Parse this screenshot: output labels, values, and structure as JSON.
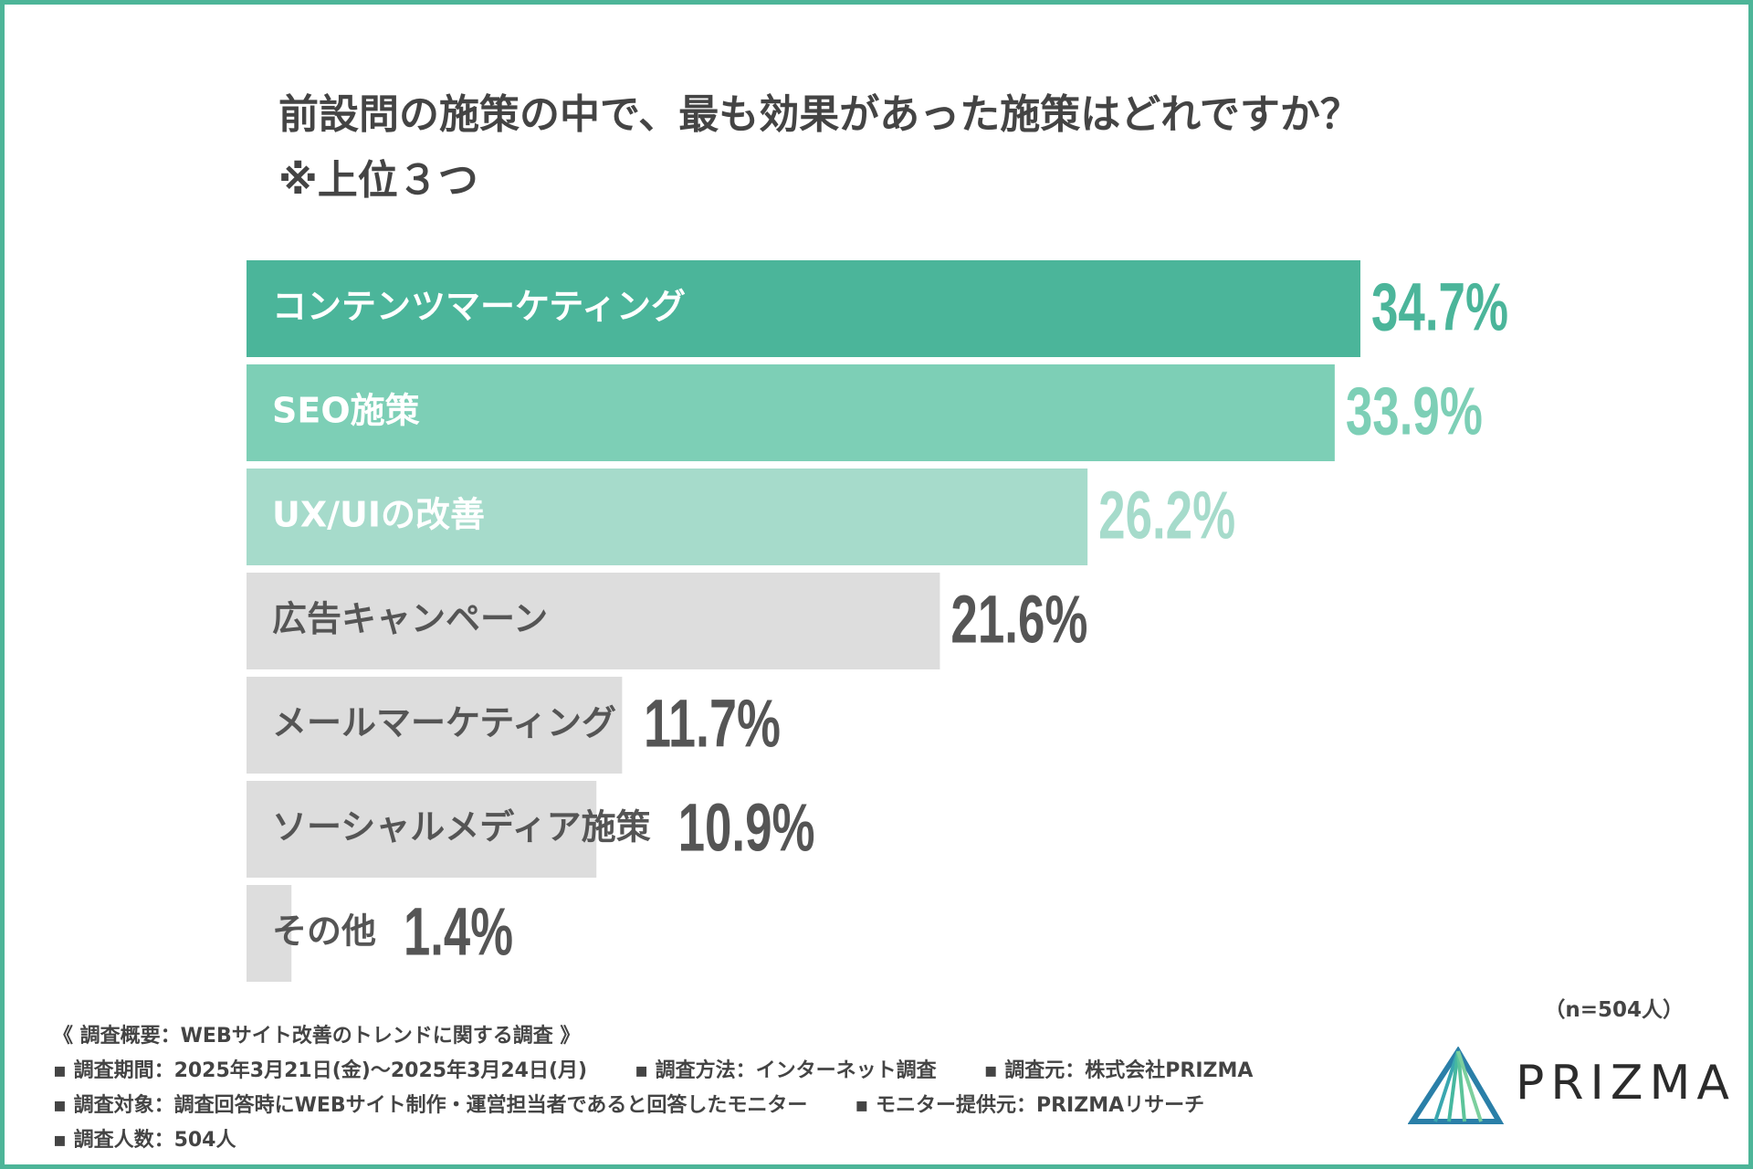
{
  "title": {
    "line1": "前設問の施策の中で、最も効果があった施策はどれですか？",
    "line2": "※上位３つ"
  },
  "chart_data": {
    "type": "bar",
    "orientation": "horizontal",
    "categories": [
      "コンテンツマーケティング",
      "SEO施策",
      "UX/UIの改善",
      "広告キャンペーン",
      "メールマーケティング",
      "ソーシャルメディア施策",
      "その他"
    ],
    "values": [
      34.7,
      33.9,
      26.2,
      21.6,
      11.7,
      10.9,
      1.4
    ],
    "value_labels": [
      "34.7%",
      "33.9%",
      "26.2%",
      "21.6%",
      "11.7%",
      "10.9%",
      "1.4%"
    ],
    "bar_colors": [
      "#4bb59a",
      "#7dcfb6",
      "#a6dbcb",
      "#dddddd",
      "#dddddd",
      "#dddddd",
      "#dddddd"
    ],
    "label_colors": [
      "#ffffff",
      "#ffffff",
      "#ffffff",
      "#555555",
      "#555555",
      "#555555",
      "#555555"
    ],
    "value_colors": [
      "#4bb59a",
      "#7dcfb6",
      "#a6dbcb",
      "#555555",
      "#555555",
      "#555555",
      "#555555"
    ],
    "unit": "%",
    "xlim": [
      0,
      34.7
    ]
  },
  "sample": "（n=504人）",
  "footer": {
    "heading": "《 調査概要：WEBサイト改善のトレンドに関する調査 》",
    "period": "▪ 調査期間：2025年3月21日(金)〜2025年3月24日(月)",
    "method": "▪ 調査方法：インターネット調査",
    "source": "▪ 調査元：株式会社PRIZMA",
    "target": "▪ 調査対象：調査回答時にWEBサイト制作・運営担当者であると回答したモニター",
    "provider": "▪ モニター提供元：PRIZMAリサーチ",
    "count": "▪ 調査人数：504人"
  },
  "logo": {
    "text": "PRIZMA"
  }
}
